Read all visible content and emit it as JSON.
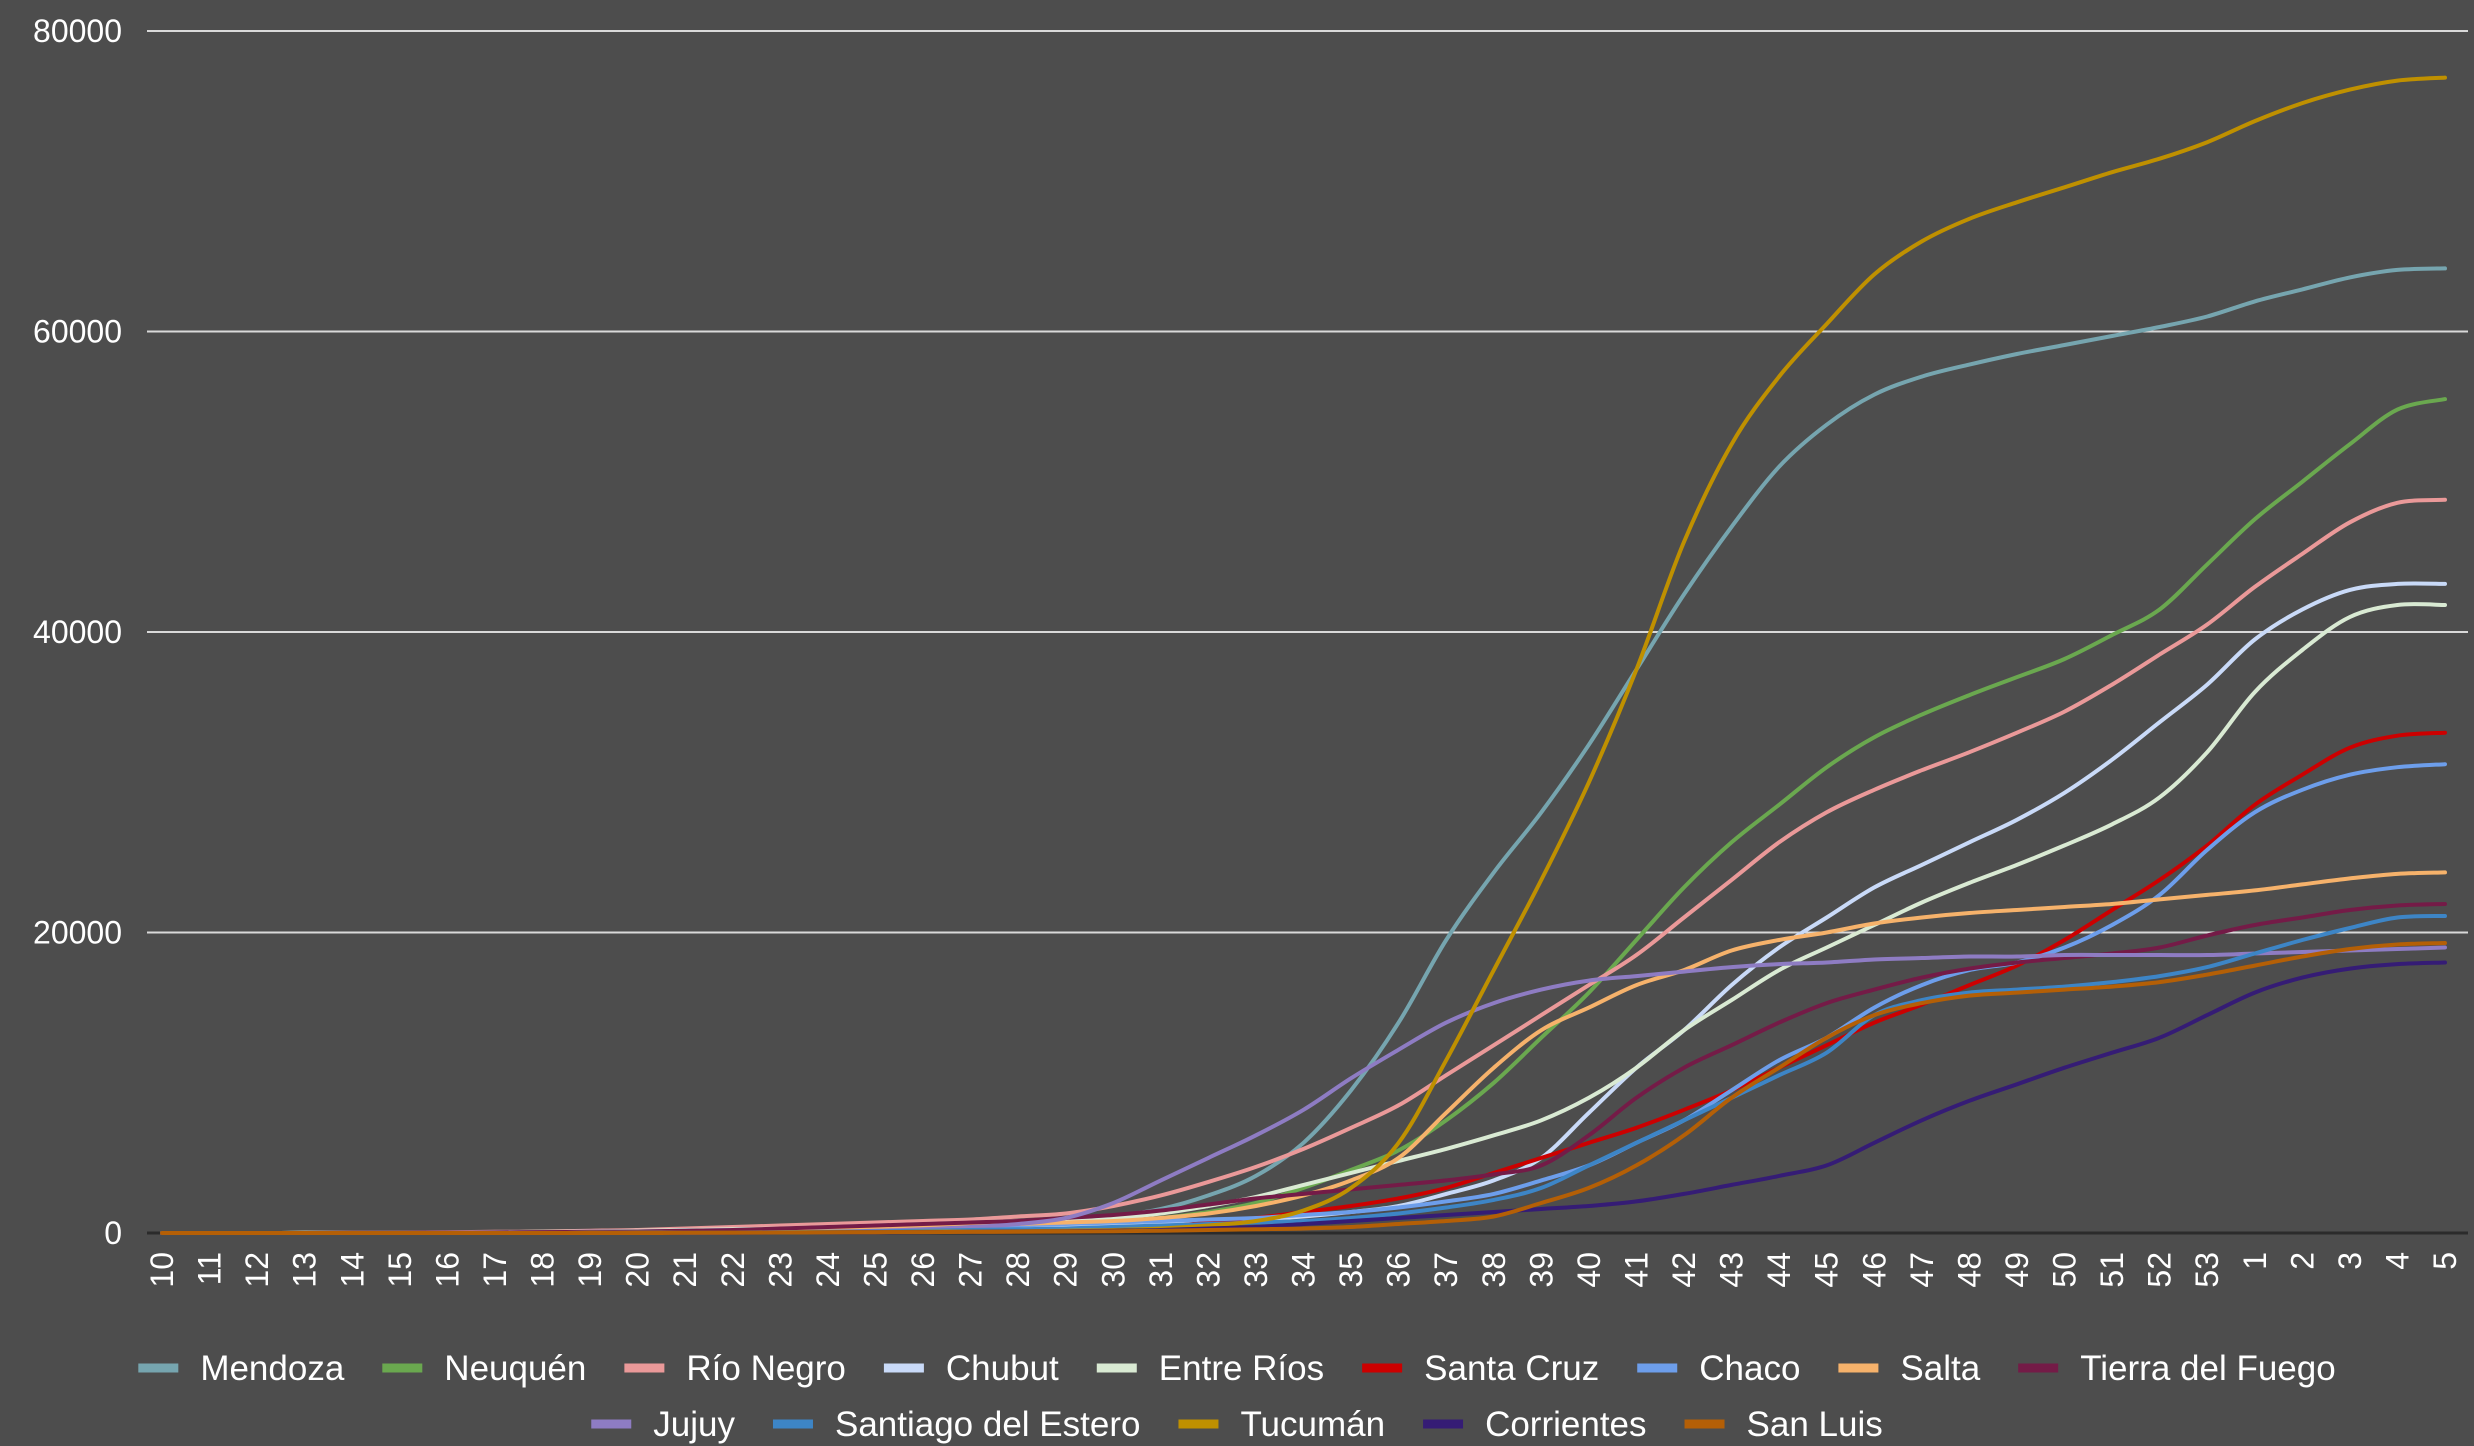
{
  "chart_data": {
    "type": "line",
    "title": "",
    "xlabel": "",
    "ylabel": "",
    "ylim": [
      0,
      80000
    ],
    "yticks": [
      0,
      20000,
      40000,
      60000,
      80000
    ],
    "grid": "horizontal",
    "legend_position": "bottom",
    "background": "#4d4d4d",
    "categories": [
      "10",
      "11",
      "12",
      "13",
      "14",
      "15",
      "16",
      "17",
      "18",
      "19",
      "20",
      "21",
      "22",
      "23",
      "24",
      "25",
      "26",
      "27",
      "28",
      "29",
      "30",
      "31",
      "32",
      "33",
      "34",
      "35",
      "36",
      "37",
      "38",
      "39",
      "40",
      "41",
      "42",
      "43",
      "44",
      "45",
      "46",
      "47",
      "48",
      "49",
      "50",
      "51",
      "52",
      "53",
      "1",
      "2",
      "3",
      "4",
      "5"
    ],
    "series": [
      {
        "name": "Mendoza",
        "color": "#76a5af",
        "values": [
          0,
          0,
          0,
          10,
          20,
          30,
          40,
          60,
          80,
          100,
          120,
          150,
          180,
          220,
          280,
          350,
          420,
          500,
          600,
          800,
          1100,
          1600,
          2500,
          3800,
          6000,
          9500,
          14000,
          19500,
          24000,
          28000,
          32500,
          37500,
          42500,
          47000,
          51000,
          53800,
          55800,
          57000,
          57800,
          58500,
          59100,
          59700,
          60300,
          61000,
          62000,
          62800,
          63600,
          64100,
          64200
        ]
      },
      {
        "name": "Neuquén",
        "color": "#6aa84f",
        "values": [
          0,
          0,
          0,
          10,
          20,
          30,
          40,
          60,
          80,
          100,
          120,
          150,
          180,
          220,
          280,
          350,
          420,
          500,
          600,
          700,
          800,
          1000,
          1400,
          2000,
          3000,
          4200,
          5500,
          7500,
          10000,
          13000,
          16000,
          19500,
          23000,
          26000,
          28500,
          31000,
          33000,
          34500,
          35800,
          37000,
          38200,
          39800,
          41500,
          44500,
          47500,
          50000,
          52500,
          54800,
          55500
        ]
      },
      {
        "name": "Río Negro",
        "color": "#ea9999",
        "values": [
          0,
          0,
          0,
          10,
          20,
          30,
          50,
          80,
          100,
          150,
          200,
          300,
          400,
          500,
          600,
          700,
          800,
          900,
          1100,
          1300,
          1800,
          2500,
          3400,
          4400,
          5600,
          7000,
          8500,
          10500,
          12500,
          14500,
          16500,
          18500,
          21000,
          23500,
          26000,
          28000,
          29500,
          30800,
          32000,
          33300,
          34700,
          36500,
          38500,
          40500,
          43000,
          45200,
          47300,
          48600,
          48800
        ]
      },
      {
        "name": "Chubut",
        "color": "#c9daf8",
        "values": [
          0,
          0,
          0,
          0,
          10,
          10,
          20,
          30,
          40,
          50,
          60,
          80,
          100,
          150,
          200,
          250,
          300,
          350,
          400,
          500,
          600,
          700,
          800,
          900,
          1100,
          1400,
          1800,
          2600,
          3500,
          5000,
          8000,
          11000,
          13500,
          16500,
          19000,
          21000,
          23000,
          24500,
          26000,
          27500,
          29300,
          31500,
          34000,
          36500,
          39500,
          41500,
          42800,
          43200,
          43200
        ]
      },
      {
        "name": "Entre Ríos",
        "color": "#d9ead3",
        "values": [
          0,
          0,
          0,
          10,
          20,
          30,
          40,
          60,
          80,
          100,
          150,
          200,
          250,
          300,
          400,
          500,
          600,
          700,
          800,
          900,
          1000,
          1300,
          1800,
          2400,
          3200,
          4000,
          4800,
          5600,
          6500,
          7500,
          9000,
          11000,
          13500,
          15500,
          17500,
          19000,
          20500,
          22000,
          23300,
          24500,
          25800,
          27200,
          29000,
          32000,
          36000,
          38800,
          41000,
          41800,
          41800
        ]
      },
      {
        "name": "Santa Cruz",
        "color": "#cc0000",
        "values": [
          0,
          0,
          0,
          0,
          0,
          0,
          0,
          0,
          0,
          10,
          10,
          20,
          30,
          40,
          50,
          60,
          80,
          100,
          120,
          150,
          200,
          400,
          700,
          1000,
          1400,
          1800,
          2300,
          3000,
          4000,
          5000,
          6000,
          7000,
          8200,
          9500,
          11000,
          12500,
          14000,
          15200,
          16500,
          17800,
          19500,
          21500,
          23500,
          25800,
          28500,
          30500,
          32300,
          33100,
          33300
        ]
      },
      {
        "name": "Chaco",
        "color": "#6d9eeb",
        "values": [
          0,
          0,
          0,
          0,
          10,
          20,
          30,
          40,
          60,
          80,
          100,
          150,
          200,
          250,
          300,
          350,
          400,
          450,
          500,
          600,
          700,
          800,
          900,
          1000,
          1200,
          1400,
          1700,
          2100,
          2600,
          3500,
          4500,
          6000,
          7500,
          9500,
          11500,
          13000,
          15000,
          16500,
          17500,
          18000,
          19000,
          20500,
          22500,
          25500,
          28000,
          29500,
          30500,
          31000,
          31200
        ]
      },
      {
        "name": "Salta",
        "color": "#f6b26b",
        "values": [
          0,
          0,
          0,
          0,
          10,
          10,
          20,
          30,
          40,
          50,
          60,
          80,
          100,
          150,
          200,
          300,
          400,
          500,
          600,
          700,
          800,
          1000,
          1300,
          1800,
          2500,
          3500,
          5000,
          8000,
          11000,
          13500,
          15000,
          16500,
          17500,
          18800,
          19500,
          20000,
          20600,
          21000,
          21300,
          21500,
          21700,
          21900,
          22200,
          22500,
          22800,
          23200,
          23600,
          23900,
          24000
        ]
      },
      {
        "name": "Tierra del Fuego",
        "color": "#741b47",
        "values": [
          0,
          0,
          0,
          0,
          10,
          20,
          30,
          40,
          60,
          80,
          100,
          150,
          200,
          300,
          400,
          500,
          600,
          700,
          800,
          1000,
          1200,
          1500,
          1900,
          2300,
          2600,
          2900,
          3200,
          3500,
          3900,
          4500,
          6500,
          9000,
          11000,
          12500,
          14000,
          15300,
          16200,
          17000,
          17600,
          18000,
          18300,
          18600,
          19000,
          19800,
          20500,
          21000,
          21500,
          21800,
          21900
        ]
      },
      {
        "name": "Jujuy",
        "color": "#8e7cc3",
        "values": [
          0,
          0,
          0,
          0,
          0,
          0,
          0,
          0,
          0,
          10,
          10,
          20,
          30,
          50,
          80,
          150,
          250,
          400,
          600,
          1000,
          2000,
          3500,
          5000,
          6500,
          8200,
          10300,
          12200,
          14000,
          15300,
          16200,
          16800,
          17100,
          17400,
          17700,
          17900,
          18000,
          18200,
          18300,
          18400,
          18400,
          18500,
          18500,
          18500,
          18500,
          18600,
          18700,
          18800,
          18900,
          19000
        ]
      },
      {
        "name": "Santiago del Estero",
        "color": "#3d85c6",
        "values": [
          0,
          0,
          0,
          0,
          0,
          0,
          0,
          0,
          0,
          10,
          10,
          20,
          30,
          50,
          80,
          100,
          150,
          200,
          250,
          300,
          400,
          500,
          600,
          700,
          800,
          1000,
          1300,
          1700,
          2200,
          3000,
          4500,
          6000,
          7500,
          9000,
          10500,
          12000,
          14500,
          15500,
          16000,
          16200,
          16400,
          16700,
          17100,
          17700,
          18600,
          19500,
          20300,
          21000,
          21100
        ]
      },
      {
        "name": "Tucumán",
        "color": "#bf9000",
        "values": [
          0,
          0,
          0,
          0,
          0,
          0,
          0,
          0,
          0,
          10,
          10,
          20,
          30,
          40,
          50,
          60,
          80,
          100,
          120,
          150,
          200,
          300,
          500,
          800,
          1500,
          3000,
          6000,
          11500,
          17500,
          23500,
          30000,
          37500,
          46000,
          52500,
          57000,
          60500,
          63800,
          66000,
          67500,
          68600,
          69600,
          70600,
          71500,
          72600,
          74000,
          75200,
          76100,
          76700,
          76900
        ]
      },
      {
        "name": "Corrientes",
        "color": "#351c75",
        "values": [
          0,
          0,
          0,
          0,
          0,
          0,
          0,
          0,
          0,
          0,
          0,
          10,
          20,
          30,
          40,
          50,
          60,
          80,
          100,
          120,
          150,
          200,
          300,
          400,
          600,
          800,
          1000,
          1200,
          1400,
          1600,
          1800,
          2100,
          2600,
          3200,
          3800,
          4500,
          6000,
          7500,
          8800,
          9900,
          11000,
          12000,
          13000,
          14500,
          16000,
          17000,
          17600,
          17900,
          18000
        ]
      },
      {
        "name": "San Luis",
        "color": "#b45f06",
        "values": [
          0,
          0,
          0,
          0,
          0,
          0,
          0,
          0,
          0,
          0,
          0,
          10,
          20,
          30,
          40,
          50,
          60,
          70,
          80,
          100,
          120,
          150,
          200,
          250,
          300,
          400,
          600,
          800,
          1100,
          2000,
          3000,
          4500,
          6500,
          9000,
          11000,
          13000,
          14500,
          15300,
          15800,
          16000,
          16200,
          16400,
          16700,
          17200,
          17800,
          18400,
          18900,
          19200,
          19300
        ]
      }
    ]
  }
}
